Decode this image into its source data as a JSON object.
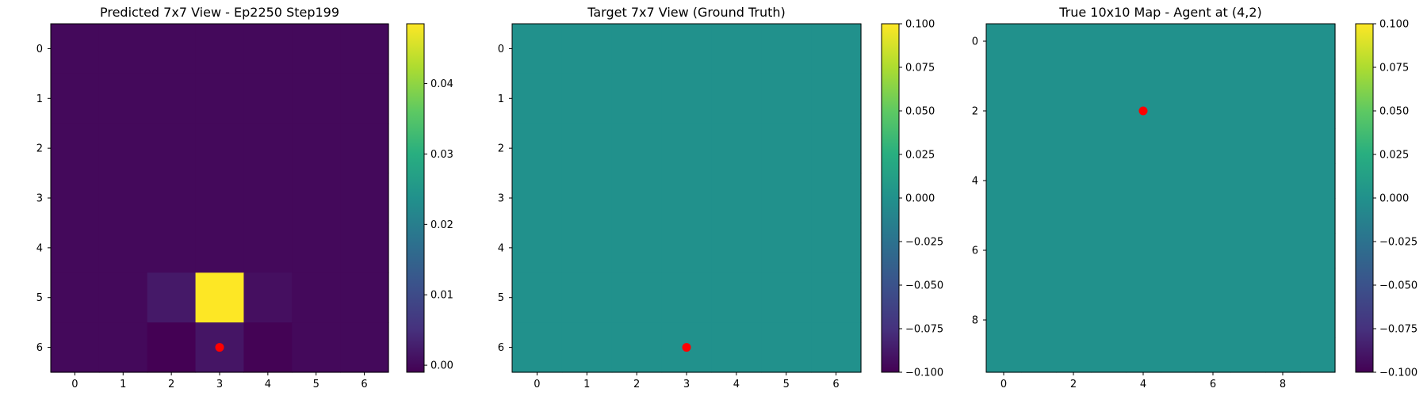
{
  "chart_data": [
    {
      "type": "heatmap",
      "title": "Predicted 7x7 View - Ep2250 Step199",
      "xlabel": "",
      "ylabel": "",
      "colormap": "viridis",
      "x_ticks": [
        "0",
        "1",
        "2",
        "3",
        "4",
        "5",
        "6"
      ],
      "y_ticks": [
        "0",
        "1",
        "2",
        "3",
        "4",
        "5",
        "6"
      ],
      "colorbar": {
        "range": [
          -0.001,
          0.0485
        ],
        "ticks": [
          "0.00",
          "0.01",
          "0.02",
          "0.03",
          "0.04"
        ]
      },
      "grid": [
        [
          0,
          0,
          0,
          0,
          0,
          0,
          0
        ],
        [
          0,
          0,
          0,
          0,
          0,
          0,
          0
        ],
        [
          0,
          0,
          0,
          0,
          0,
          0,
          0
        ],
        [
          0,
          0,
          0,
          0,
          0,
          0,
          0
        ],
        [
          0,
          0,
          0,
          0,
          0,
          0,
          0
        ],
        [
          0,
          0,
          0.002,
          0.0485,
          0.0008,
          0,
          0
        ],
        [
          0,
          0,
          -0.001,
          0.0015,
          -0.0008,
          0,
          0
        ]
      ],
      "marker": {
        "x": 3,
        "y": 6,
        "color": "#ff0000"
      }
    },
    {
      "type": "heatmap",
      "title": "Target 7x7 View (Ground Truth)",
      "xlabel": "",
      "ylabel": "",
      "colormap": "viridis",
      "x_ticks": [
        "0",
        "1",
        "2",
        "3",
        "4",
        "5",
        "6"
      ],
      "y_ticks": [
        "0",
        "1",
        "2",
        "3",
        "4",
        "5",
        "6"
      ],
      "colorbar": {
        "range": [
          -0.1,
          0.1
        ],
        "ticks": [
          "0.100",
          "0.075",
          "0.050",
          "0.025",
          "0.000",
          "−0.025",
          "−0.050",
          "−0.075",
          "−0.100"
        ]
      },
      "fill_value": 0,
      "marker": {
        "x": 3,
        "y": 6,
        "color": "#ff0000"
      }
    },
    {
      "type": "heatmap",
      "title": "True 10x10 Map - Agent at (4,2)",
      "xlabel": "",
      "ylabel": "",
      "colormap": "viridis",
      "x_ticks": [
        "0",
        "2",
        "4",
        "6",
        "8"
      ],
      "y_ticks": [
        "0",
        "2",
        "4",
        "6",
        "8"
      ],
      "colorbar": {
        "range": [
          -0.1,
          0.1
        ],
        "ticks": [
          "0.100",
          "0.075",
          "0.050",
          "0.025",
          "0.000",
          "−0.025",
          "−0.050",
          "−0.075",
          "−0.100"
        ]
      },
      "fill_value": 0,
      "marker": {
        "x": 4,
        "y": 2,
        "color": "#ff0000"
      }
    }
  ]
}
